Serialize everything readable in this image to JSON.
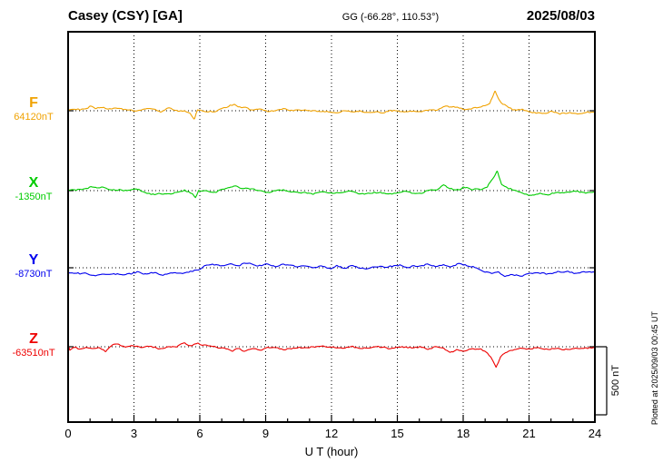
{
  "chart_data": {
    "type": "line",
    "title": "Casey (CSY)  [GA]",
    "subtitle": "GG (-66.28°, 110.53°)",
    "date": "2025/08/03",
    "xlabel": "U T (hour)",
    "x_ticks": [
      0,
      3,
      6,
      9,
      12,
      15,
      18,
      21,
      24
    ],
    "xlim": [
      0,
      24
    ],
    "grid": "vertical-dotted-every-3h",
    "scale_bar_nT": 500,
    "scale_bar_label": "500 nT",
    "plotted_at": "Plotted at 2025/09/03 00:45 UT",
    "series": [
      {
        "name": "F",
        "baseline_label": "64120nT",
        "baseline_nT": 64120,
        "color": "#f0a202",
        "points_hour_offset_nT": [
          [
            0,
            13
          ],
          [
            0.4,
            5
          ],
          [
            0.8,
            10
          ],
          [
            1.0,
            32
          ],
          [
            1.2,
            18
          ],
          [
            1.5,
            25
          ],
          [
            1.8,
            10
          ],
          [
            2.1,
            18
          ],
          [
            2.5,
            2
          ],
          [
            2.8,
            12
          ],
          [
            3.1,
            5
          ],
          [
            3.5,
            18
          ],
          [
            3.9,
            5
          ],
          [
            4.2,
            -6
          ],
          [
            4.6,
            12
          ],
          [
            5.0,
            0
          ],
          [
            5.3,
            8
          ],
          [
            5.55,
            -12
          ],
          [
            5.75,
            -55
          ],
          [
            5.9,
            10
          ],
          [
            6.2,
            6
          ],
          [
            6.6,
            -2
          ],
          [
            7.0,
            10
          ],
          [
            7.4,
            45
          ],
          [
            7.6,
            50
          ],
          [
            7.9,
            25
          ],
          [
            8.3,
            15
          ],
          [
            8.8,
            8
          ],
          [
            9.3,
            2
          ],
          [
            9.8,
            8
          ],
          [
            10.4,
            0
          ],
          [
            11.0,
            -6
          ],
          [
            11.6,
            2
          ],
          [
            12.2,
            -6
          ],
          [
            12.8,
            0
          ],
          [
            13.4,
            -6
          ],
          [
            14.0,
            -2
          ],
          [
            14.6,
            -8
          ],
          [
            15.2,
            -2
          ],
          [
            15.8,
            -6
          ],
          [
            16.4,
            2
          ],
          [
            16.8,
            10
          ],
          [
            17.2,
            35
          ],
          [
            17.5,
            18
          ],
          [
            17.8,
            30
          ],
          [
            18.1,
            12
          ],
          [
            18.5,
            20
          ],
          [
            18.9,
            25
          ],
          [
            19.2,
            50
          ],
          [
            19.45,
            150
          ],
          [
            19.6,
            95
          ],
          [
            19.8,
            45
          ],
          [
            20.1,
            22
          ],
          [
            20.4,
            10
          ],
          [
            20.8,
            0
          ],
          [
            21.2,
            -15
          ],
          [
            21.6,
            -20
          ],
          [
            22.0,
            -12
          ],
          [
            22.4,
            -20
          ],
          [
            22.8,
            -10
          ],
          [
            23.2,
            -18
          ],
          [
            23.6,
            -12
          ],
          [
            24,
            -15
          ]
        ]
      },
      {
        "name": "X",
        "baseline_label": "-1350nT",
        "baseline_nT": -1350,
        "color": "#00cc00",
        "points_hour_offset_nT": [
          [
            0,
            12
          ],
          [
            0.4,
            0
          ],
          [
            0.8,
            8
          ],
          [
            1.05,
            30
          ],
          [
            1.3,
            12
          ],
          [
            1.6,
            20
          ],
          [
            2.0,
            5
          ],
          [
            2.4,
            12
          ],
          [
            2.8,
            -5
          ],
          [
            3.1,
            8
          ],
          [
            3.5,
            -12
          ],
          [
            3.9,
            -22
          ],
          [
            4.3,
            -30
          ],
          [
            4.7,
            -20
          ],
          [
            5.0,
            -8
          ],
          [
            5.3,
            5
          ],
          [
            5.6,
            -18
          ],
          [
            5.8,
            -45
          ],
          [
            5.95,
            8
          ],
          [
            6.2,
            0
          ],
          [
            6.6,
            -12
          ],
          [
            7.0,
            0
          ],
          [
            7.4,
            35
          ],
          [
            7.65,
            40
          ],
          [
            7.9,
            18
          ],
          [
            8.3,
            8
          ],
          [
            8.8,
            -2
          ],
          [
            9.3,
            -10
          ],
          [
            9.8,
            -5
          ],
          [
            10.4,
            -14
          ],
          [
            11.0,
            -20
          ],
          [
            11.6,
            -12
          ],
          [
            12.2,
            -18
          ],
          [
            12.8,
            -12
          ],
          [
            13.4,
            -20
          ],
          [
            14.0,
            -13
          ],
          [
            14.6,
            -20
          ],
          [
            15.2,
            -13
          ],
          [
            15.8,
            -18
          ],
          [
            16.4,
            -6
          ],
          [
            16.8,
            5
          ],
          [
            17.1,
            42
          ],
          [
            17.4,
            20
          ],
          [
            17.7,
            10
          ],
          [
            18.0,
            25
          ],
          [
            18.4,
            0
          ],
          [
            18.8,
            12
          ],
          [
            19.1,
            30
          ],
          [
            19.4,
            100
          ],
          [
            19.55,
            150
          ],
          [
            19.75,
            45
          ],
          [
            20.0,
            15
          ],
          [
            20.4,
            0
          ],
          [
            20.8,
            -15
          ],
          [
            21.1,
            -32
          ],
          [
            21.5,
            -20
          ],
          [
            21.9,
            -28
          ],
          [
            22.3,
            -13
          ],
          [
            22.7,
            -20
          ],
          [
            23.1,
            -8
          ],
          [
            23.5,
            -14
          ],
          [
            24,
            -2
          ]
        ]
      },
      {
        "name": "Y",
        "baseline_label": "-8730nT",
        "baseline_nT": -8730,
        "color": "#0000ee",
        "points_hour_offset_nT": [
          [
            0,
            -40
          ],
          [
            0.4,
            -48
          ],
          [
            0.8,
            -38
          ],
          [
            1.2,
            -52
          ],
          [
            1.6,
            -42
          ],
          [
            2.0,
            -48
          ],
          [
            2.4,
            -40
          ],
          [
            2.8,
            -46
          ],
          [
            3.2,
            -38
          ],
          [
            3.6,
            -48
          ],
          [
            4.0,
            -40
          ],
          [
            4.4,
            -52
          ],
          [
            4.8,
            -42
          ],
          [
            5.2,
            -36
          ],
          [
            5.6,
            -30
          ],
          [
            6.0,
            -12
          ],
          [
            6.3,
            18
          ],
          [
            6.6,
            26
          ],
          [
            7.0,
            18
          ],
          [
            7.4,
            32
          ],
          [
            7.8,
            22
          ],
          [
            8.2,
            28
          ],
          [
            8.6,
            16
          ],
          [
            9.0,
            22
          ],
          [
            9.4,
            14
          ],
          [
            9.8,
            20
          ],
          [
            10.2,
            10
          ],
          [
            10.6,
            14
          ],
          [
            11.0,
            8
          ],
          [
            11.5,
            12
          ],
          [
            12.0,
            2
          ],
          [
            12.25,
            20
          ],
          [
            12.5,
            4
          ],
          [
            13.0,
            8
          ],
          [
            13.5,
            2
          ],
          [
            14.0,
            8
          ],
          [
            14.5,
            2
          ],
          [
            15.0,
            8
          ],
          [
            15.3,
            14
          ],
          [
            15.6,
            4
          ],
          [
            16.0,
            12
          ],
          [
            16.3,
            26
          ],
          [
            16.6,
            12
          ],
          [
            17.0,
            20
          ],
          [
            17.4,
            12
          ],
          [
            17.8,
            26
          ],
          [
            18.2,
            12
          ],
          [
            18.6,
            -2
          ],
          [
            19.0,
            -28
          ],
          [
            19.3,
            -50
          ],
          [
            19.6,
            -38
          ],
          [
            19.9,
            -58
          ],
          [
            20.2,
            -46
          ],
          [
            20.6,
            -54
          ],
          [
            21.0,
            -40
          ],
          [
            21.4,
            -32
          ],
          [
            21.8,
            -40
          ],
          [
            22.2,
            -32
          ],
          [
            22.6,
            -38
          ],
          [
            23.0,
            -32
          ],
          [
            23.4,
            -38
          ],
          [
            23.7,
            -30
          ],
          [
            24,
            -34
          ]
        ]
      },
      {
        "name": "Z",
        "baseline_label": "-63510nT",
        "baseline_nT": -63510,
        "color": "#ee0000",
        "points_hour_offset_nT": [
          [
            0,
            12
          ],
          [
            0.08,
            -25
          ],
          [
            0.2,
            -12
          ],
          [
            0.5,
            -20
          ],
          [
            0.8,
            -6
          ],
          [
            1.1,
            -18
          ],
          [
            1.4,
            -6
          ],
          [
            1.7,
            -26
          ],
          [
            2.0,
            8
          ],
          [
            2.3,
            20
          ],
          [
            2.6,
            6
          ],
          [
            2.9,
            14
          ],
          [
            3.3,
            0
          ],
          [
            3.7,
            8
          ],
          [
            4.1,
            -8
          ],
          [
            4.5,
            0
          ],
          [
            4.9,
            6
          ],
          [
            5.3,
            24
          ],
          [
            5.6,
            10
          ],
          [
            5.9,
            30
          ],
          [
            6.1,
            14
          ],
          [
            6.4,
            2
          ],
          [
            6.8,
            -6
          ],
          [
            7.2,
            -14
          ],
          [
            7.5,
            -38
          ],
          [
            7.75,
            -18
          ],
          [
            8.0,
            -28
          ],
          [
            8.4,
            -10
          ],
          [
            8.9,
            -14
          ],
          [
            9.4,
            -6
          ],
          [
            9.9,
            -12
          ],
          [
            10.4,
            -5
          ],
          [
            11.0,
            -10
          ],
          [
            11.6,
            -4
          ],
          [
            12.2,
            -8
          ],
          [
            12.8,
            -2
          ],
          [
            13.4,
            -8
          ],
          [
            14.0,
            -3
          ],
          [
            14.6,
            -8
          ],
          [
            15.2,
            -2
          ],
          [
            15.8,
            -6
          ],
          [
            16.3,
            -12
          ],
          [
            16.7,
            -8
          ],
          [
            17.1,
            -20
          ],
          [
            17.4,
            -38
          ],
          [
            17.7,
            -18
          ],
          [
            18.0,
            -30
          ],
          [
            18.4,
            -14
          ],
          [
            18.8,
            -26
          ],
          [
            19.1,
            -48
          ],
          [
            19.35,
            -100
          ],
          [
            19.5,
            -150
          ],
          [
            19.7,
            -70
          ],
          [
            19.95,
            -38
          ],
          [
            20.3,
            -24
          ],
          [
            20.7,
            -14
          ],
          [
            21.1,
            -18
          ],
          [
            21.5,
            -8
          ],
          [
            21.9,
            -14
          ],
          [
            22.3,
            -6
          ],
          [
            22.7,
            -12
          ],
          [
            23.1,
            -6
          ],
          [
            23.5,
            -12
          ],
          [
            24,
            -8
          ]
        ]
      }
    ]
  }
}
